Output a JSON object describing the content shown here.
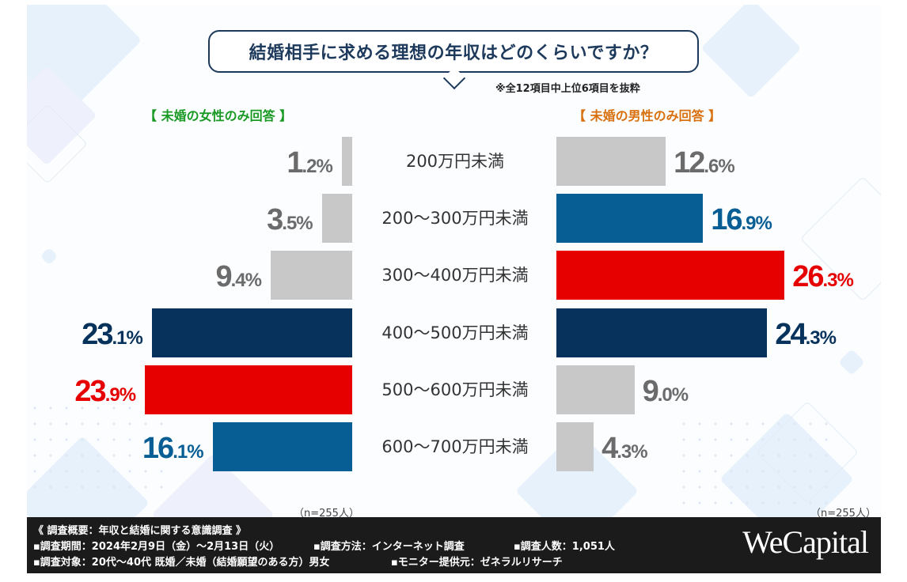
{
  "title": "結婚相手に求める理想の年収はどのくらいですか？",
  "note": "※全12項目中上位6項目を抜粋",
  "colors": {
    "gray": "#c8c8c8",
    "gray_text": "#6b6b6b",
    "blue": "#075e94",
    "navy": "#06325b",
    "red": "#e60000",
    "female_label": "#1a9a24",
    "male_label": "#d8700e"
  },
  "chart_data": {
    "type": "bar",
    "orientation": "horizontal-butterfly",
    "title": "結婚相手に求める理想の年収はどのくらいですか？",
    "categories": [
      "200万円未満",
      "200〜300万円未満",
      "300〜400万円未満",
      "400〜500万円未満",
      "500〜600万円未満",
      "600〜700万円未満"
    ],
    "series": [
      {
        "name": "【 未婚の女性のみ回答 】",
        "side": "left",
        "values": [
          1.2,
          3.5,
          9.4,
          23.1,
          23.9,
          16.1
        ],
        "labels": [
          "1.2%",
          "3.5%",
          "9.4%",
          "23.1%",
          "23.9%",
          "16.1%"
        ],
        "highlight": [
          "gray",
          "gray",
          "gray",
          "navy",
          "red",
          "blue"
        ],
        "n": "（n=255人）"
      },
      {
        "name": "【 未婚の男性のみ回答 】",
        "side": "right",
        "values": [
          12.6,
          16.9,
          26.3,
          24.3,
          9.0,
          4.3
        ],
        "labels": [
          "12.6%",
          "16.9%",
          "26.3%",
          "24.3%",
          "9.0%",
          "4.3%"
        ],
        "highlight": [
          "gray",
          "blue",
          "red",
          "navy",
          "gray",
          "gray"
        ],
        "n": "（n=255人）"
      }
    ],
    "unit": "%",
    "note": "※全12項目中上位6項目を抜粋"
  },
  "footer": {
    "heading": "《 調査概要：年収と結婚に関する意識調査 》",
    "period": "▪調査期間：2024年2月9日（金）〜2月13日（火）",
    "method": "▪調査方法：インターネット調査",
    "count": "▪調査人数：1,051人",
    "target": "▪調査対象：20代〜40代 既婚／未婚（結婚願望のある方）男女",
    "provider": "▪モニター提供元：ゼネラルリサーチ",
    "logo": "WeCapital"
  }
}
